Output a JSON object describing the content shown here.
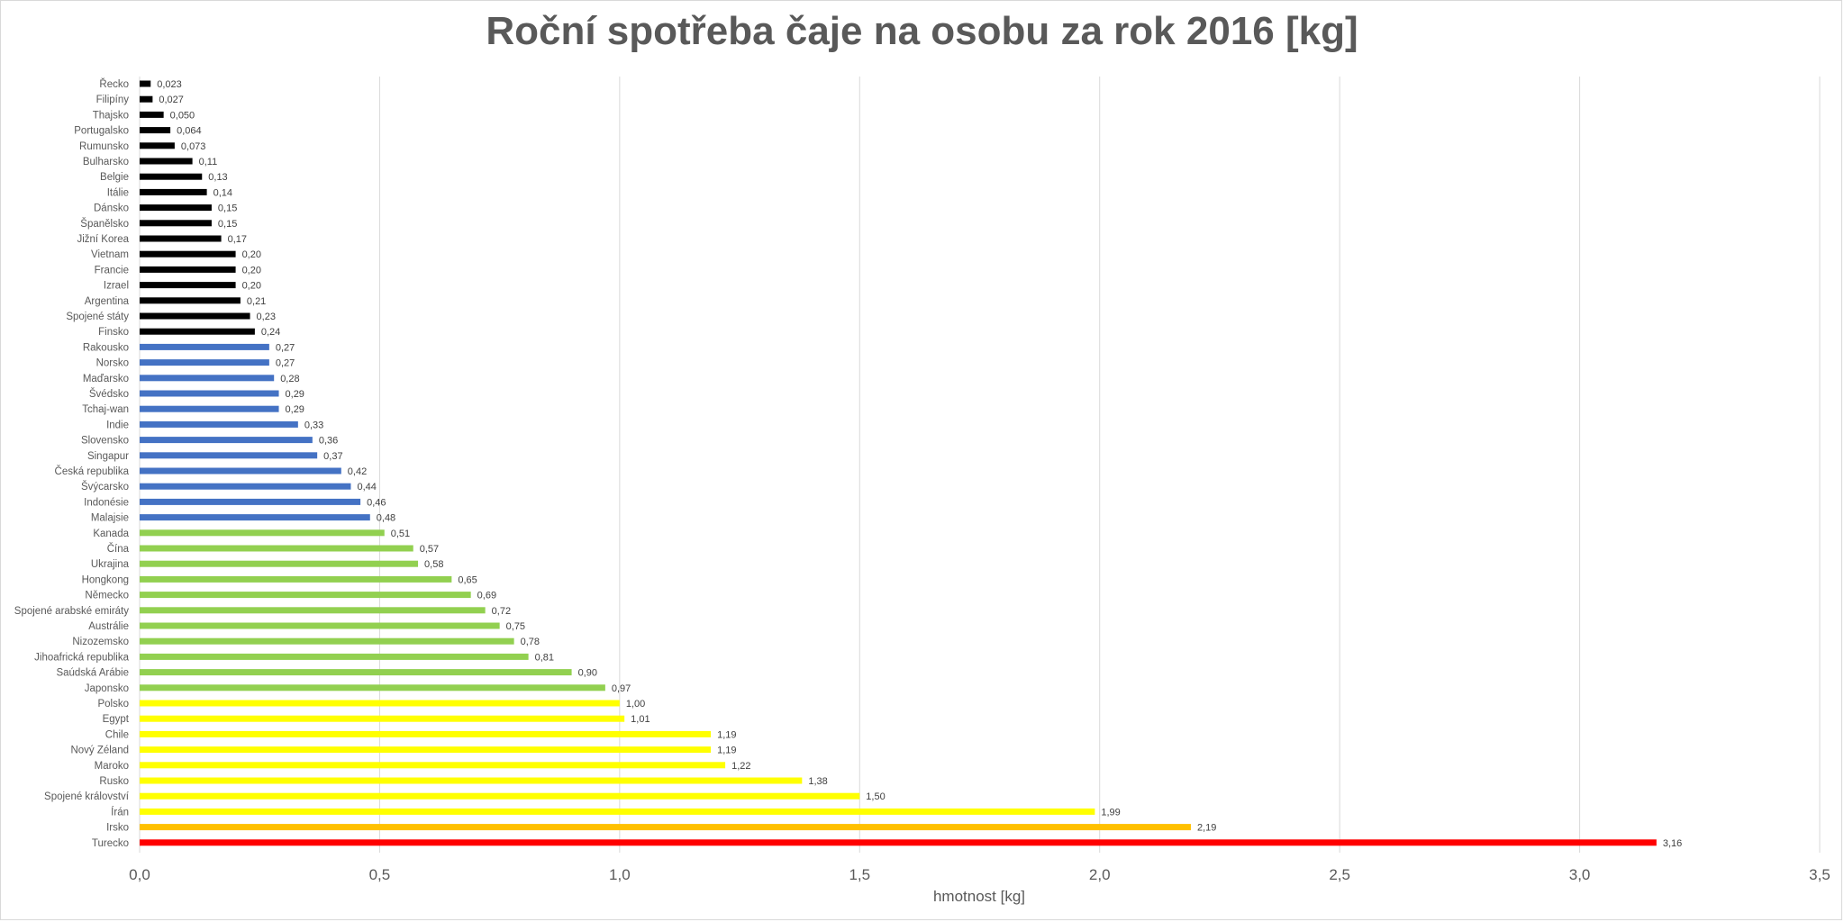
{
  "chart_data": {
    "type": "bar",
    "orientation": "horizontal",
    "title": "Roční spotřeba čaje na osobu za rok 2016 [kg]",
    "xlabel": "hmotnost [kg]",
    "ylabel": "",
    "xlim": [
      0,
      3.5
    ],
    "xticks": [
      {
        "value": 0,
        "label": "0,0"
      },
      {
        "value": 0.5,
        "label": "0,5"
      },
      {
        "value": 1,
        "label": "1,0"
      },
      {
        "value": 1.5,
        "label": "1,5"
      },
      {
        "value": 2,
        "label": "2,0"
      },
      {
        "value": 2.5,
        "label": "2,5"
      },
      {
        "value": 3,
        "label": "3,0"
      },
      {
        "value": 3.5,
        "label": "3,5"
      }
    ],
    "grid": true,
    "legend": "none",
    "bars": [
      {
        "category": "Řecko",
        "value": 0.023,
        "label": "0,023",
        "color": "#000000"
      },
      {
        "category": "Filipíny",
        "value": 0.027,
        "label": "0,027",
        "color": "#000000"
      },
      {
        "category": "Thajsko",
        "value": 0.05,
        "label": "0,050",
        "color": "#000000"
      },
      {
        "category": "Portugalsko",
        "value": 0.064,
        "label": "0,064",
        "color": "#000000"
      },
      {
        "category": "Rumunsko",
        "value": 0.073,
        "label": "0,073",
        "color": "#000000"
      },
      {
        "category": "Bulharsko",
        "value": 0.11,
        "label": "0,11",
        "color": "#000000"
      },
      {
        "category": "Belgie",
        "value": 0.13,
        "label": "0,13",
        "color": "#000000"
      },
      {
        "category": "Itálie",
        "value": 0.14,
        "label": "0,14",
        "color": "#000000"
      },
      {
        "category": "Dánsko",
        "value": 0.15,
        "label": "0,15",
        "color": "#000000"
      },
      {
        "category": "Španělsko",
        "value": 0.15,
        "label": "0,15",
        "color": "#000000"
      },
      {
        "category": "Jižní Korea",
        "value": 0.17,
        "label": "0,17",
        "color": "#000000"
      },
      {
        "category": "Vietnam",
        "value": 0.2,
        "label": "0,20",
        "color": "#000000"
      },
      {
        "category": "Francie",
        "value": 0.2,
        "label": "0,20",
        "color": "#000000"
      },
      {
        "category": "Izrael",
        "value": 0.2,
        "label": "0,20",
        "color": "#000000"
      },
      {
        "category": "Argentina",
        "value": 0.21,
        "label": "0,21",
        "color": "#000000"
      },
      {
        "category": "Spojené státy",
        "value": 0.23,
        "label": "0,23",
        "color": "#000000"
      },
      {
        "category": "Finsko",
        "value": 0.24,
        "label": "0,24",
        "color": "#000000"
      },
      {
        "category": "Rakousko",
        "value": 0.27,
        "label": "0,27",
        "color": "#4472c4"
      },
      {
        "category": "Norsko",
        "value": 0.27,
        "label": "0,27",
        "color": "#4472c4"
      },
      {
        "category": "Maďarsko",
        "value": 0.28,
        "label": "0,28",
        "color": "#4472c4"
      },
      {
        "category": "Švédsko",
        "value": 0.29,
        "label": "0,29",
        "color": "#4472c4"
      },
      {
        "category": "Tchaj-wan",
        "value": 0.29,
        "label": "0,29",
        "color": "#4472c4"
      },
      {
        "category": "Indie",
        "value": 0.33,
        "label": "0,33",
        "color": "#4472c4"
      },
      {
        "category": "Slovensko",
        "value": 0.36,
        "label": "0,36",
        "color": "#4472c4"
      },
      {
        "category": "Singapur",
        "value": 0.37,
        "label": "0,37",
        "color": "#4472c4"
      },
      {
        "category": "Česká republika",
        "value": 0.42,
        "label": "0,42",
        "color": "#4472c4"
      },
      {
        "category": "Švýcarsko",
        "value": 0.44,
        "label": "0,44",
        "color": "#4472c4"
      },
      {
        "category": "Indonésie",
        "value": 0.46,
        "label": "0,46",
        "color": "#4472c4"
      },
      {
        "category": "Malajsie",
        "value": 0.48,
        "label": "0,48",
        "color": "#4472c4"
      },
      {
        "category": "Kanada",
        "value": 0.51,
        "label": "0,51",
        "color": "#92d050"
      },
      {
        "category": "Čína",
        "value": 0.57,
        "label": "0,57",
        "color": "#92d050"
      },
      {
        "category": "Ukrajina",
        "value": 0.58,
        "label": "0,58",
        "color": "#92d050"
      },
      {
        "category": "Hongkong",
        "value": 0.65,
        "label": "0,65",
        "color": "#92d050"
      },
      {
        "category": "Německo",
        "value": 0.69,
        "label": "0,69",
        "color": "#92d050"
      },
      {
        "category": "Spojené arabské emiráty",
        "value": 0.72,
        "label": "0,72",
        "color": "#92d050"
      },
      {
        "category": "Austrálie",
        "value": 0.75,
        "label": "0,75",
        "color": "#92d050"
      },
      {
        "category": "Nizozemsko",
        "value": 0.78,
        "label": "0,78",
        "color": "#92d050"
      },
      {
        "category": "Jihoafrická republika",
        "value": 0.81,
        "label": "0,81",
        "color": "#92d050"
      },
      {
        "category": "Saúdská Arábie",
        "value": 0.9,
        "label": "0,90",
        "color": "#92d050"
      },
      {
        "category": "Japonsko",
        "value": 0.97,
        "label": "0,97",
        "color": "#92d050"
      },
      {
        "category": "Polsko",
        "value": 1.0,
        "label": "1,00",
        "color": "#ffff00"
      },
      {
        "category": "Egypt",
        "value": 1.01,
        "label": "1,01",
        "color": "#ffff00"
      },
      {
        "category": "Chile",
        "value": 1.19,
        "label": "1,19",
        "color": "#ffff00"
      },
      {
        "category": "Nový Zéland",
        "value": 1.19,
        "label": "1,19",
        "color": "#ffff00"
      },
      {
        "category": "Maroko",
        "value": 1.22,
        "label": "1,22",
        "color": "#ffff00"
      },
      {
        "category": "Rusko",
        "value": 1.38,
        "label": "1,38",
        "color": "#ffff00"
      },
      {
        "category": "Spojené království",
        "value": 1.5,
        "label": "1,50",
        "color": "#ffff00"
      },
      {
        "category": "Írán",
        "value": 1.99,
        "label": "1,99",
        "color": "#ffff00"
      },
      {
        "category": "Irsko",
        "value": 2.19,
        "label": "2,19",
        "color": "#ffc000"
      },
      {
        "category": "Turecko",
        "value": 3.16,
        "label": "3,16",
        "color": "#ff0000"
      }
    ]
  }
}
